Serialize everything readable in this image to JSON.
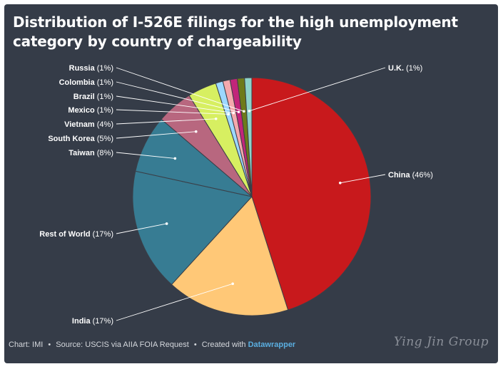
{
  "chart_data": {
    "type": "pie",
    "title": "Distribution of I-526E filings for the high unemployment category by country of chargeability",
    "slices": [
      {
        "label": "China",
        "pct_label": "(46%)",
        "value": 46,
        "color": "#c8191c"
      },
      {
        "label": "India",
        "pct_label": "(17%)",
        "value": 17,
        "color": "#ffc877"
      },
      {
        "label": "Rest of World",
        "pct_label": "(17%)",
        "value": 17,
        "color": "#377c93"
      },
      {
        "label": "Taiwan",
        "pct_label": "(8%)",
        "value": 8,
        "color": "#377c93"
      },
      {
        "label": "South Korea",
        "pct_label": "(5%)",
        "value": 5,
        "color": "#b8677f"
      },
      {
        "label": "Vietnam",
        "pct_label": "(4%)",
        "value": 4,
        "color": "#d7ef61"
      },
      {
        "label": "Mexico",
        "pct_label": "(1%)",
        "value": 1,
        "color": "#9dd8ff"
      },
      {
        "label": "Brazil",
        "pct_label": "(1%)",
        "value": 1,
        "color": "#f5a9ad"
      },
      {
        "label": "Colombia",
        "pct_label": "(1%)",
        "value": 1,
        "color": "#c2257a"
      },
      {
        "label": "Russia",
        "pct_label": "(1%)",
        "value": 1,
        "color": "#6e7a1a"
      },
      {
        "label": "U.K.",
        "pct_label": "(1%)",
        "value": 1,
        "color": "#8fd3ca"
      }
    ]
  },
  "footer": {
    "chart_credit": "Chart: IMI",
    "source": "Source: USCIS via AIIA FOIA Request",
    "created_with": "Created with",
    "brand": "Datawrapper",
    "separator": "•"
  },
  "watermark": "Ying Jin Group"
}
